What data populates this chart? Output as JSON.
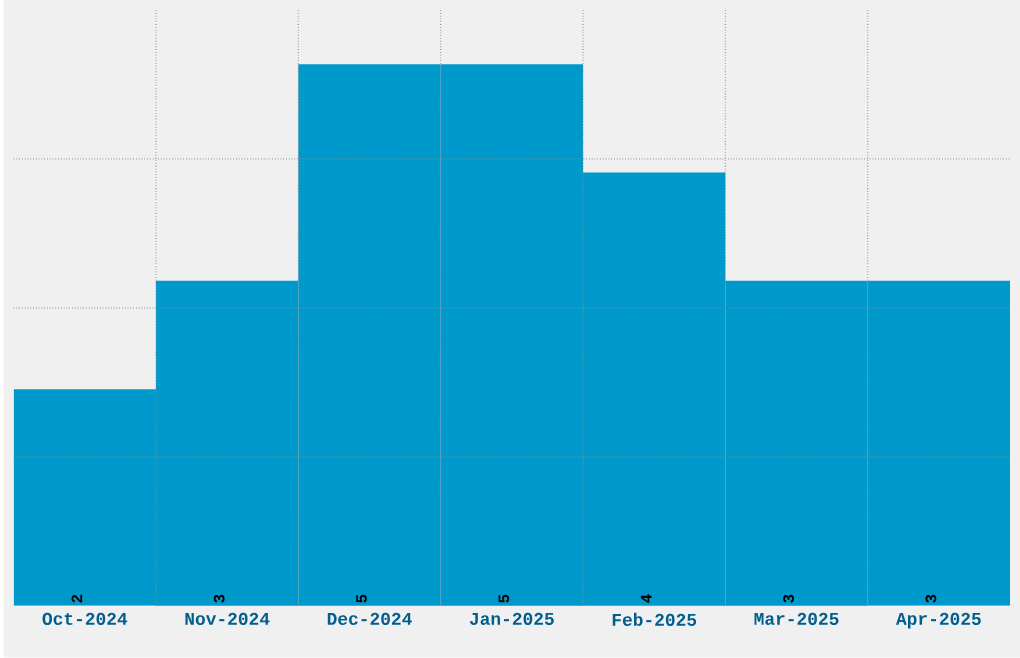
{
  "chart_data": {
    "type": "bar",
    "categories": [
      "Oct-2024",
      "Nov-2024",
      "Dec-2024",
      "Jan-2025",
      "Feb-2025",
      "Mar-2025",
      "Apr-2025"
    ],
    "values": [
      2,
      3,
      5,
      5,
      4,
      3,
      3
    ],
    "color": "#0099cc",
    "ylim": [
      0,
      5.5
    ],
    "yticks": [
      {
        "value": 1.375,
        "label": null
      },
      {
        "value": 2.75,
        "label": null
      },
      {
        "value": 4.125,
        "label": null
      }
    ],
    "grid": true,
    "data_labels": true,
    "tick_labels": "x"
  }
}
